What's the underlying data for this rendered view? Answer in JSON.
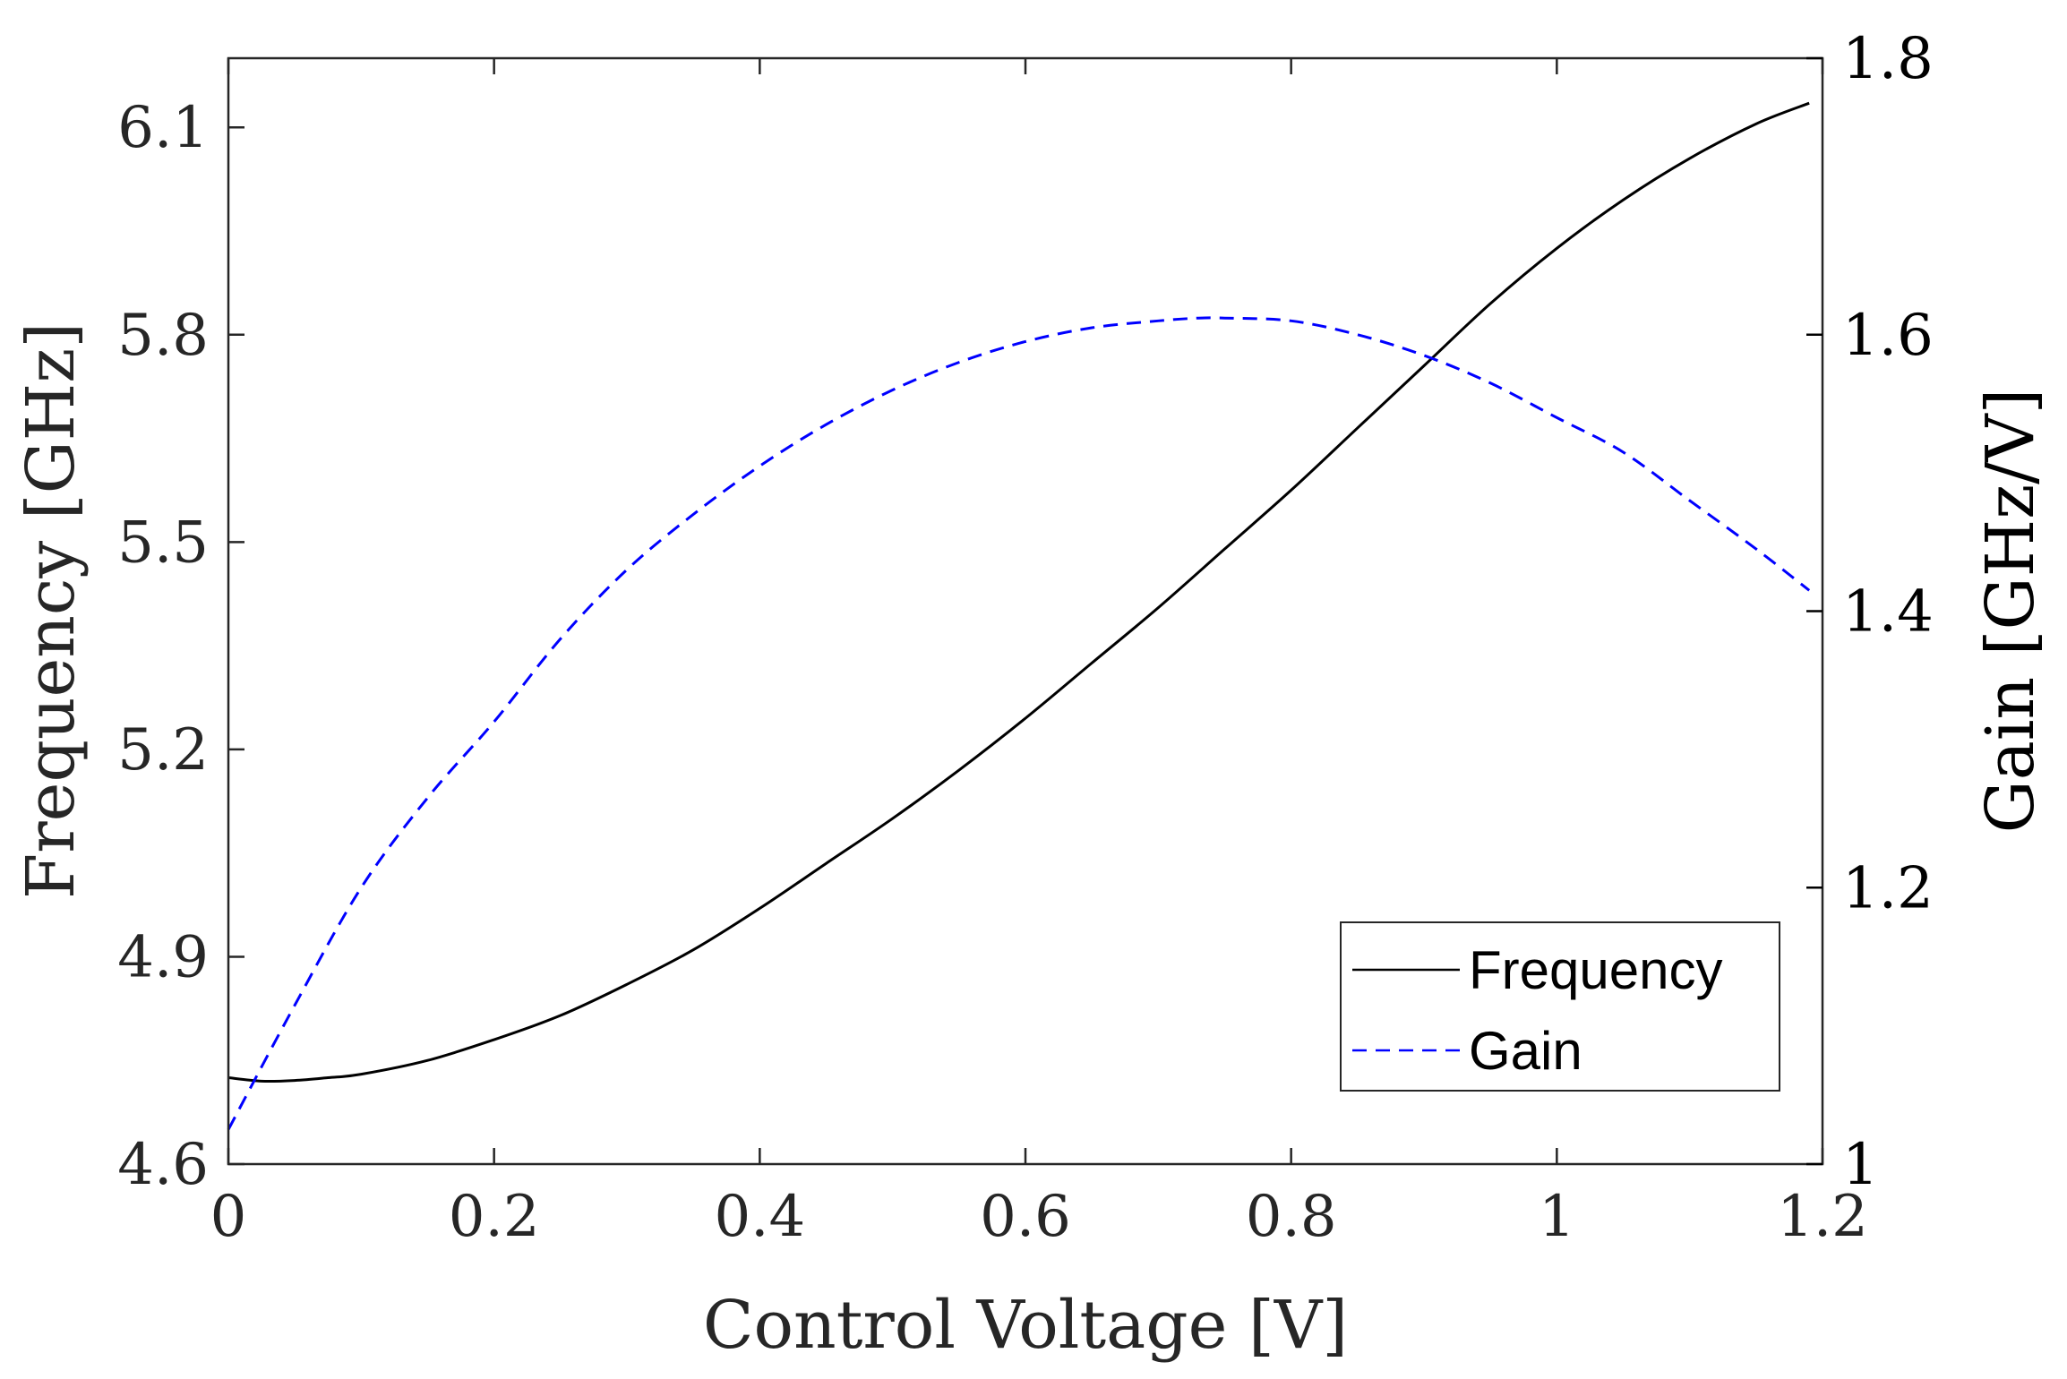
{
  "chart_data": {
    "type": "line",
    "xlabel": "Control Voltage [V]",
    "ylabel_left": "Frequency [GHz]",
    "ylabel_right": "Gain [GHz/V]",
    "xlim": [
      0,
      1.2
    ],
    "ylim_left": [
      4.6,
      6.2
    ],
    "ylim_right": [
      1.0,
      1.8
    ],
    "x_ticks": [
      {
        "value": 0,
        "label": "0"
      },
      {
        "value": 0.2,
        "label": "0.2"
      },
      {
        "value": 0.4,
        "label": "0.4"
      },
      {
        "value": 0.6,
        "label": "0.6"
      },
      {
        "value": 0.8,
        "label": "0.8"
      },
      {
        "value": 1.0,
        "label": "1"
      },
      {
        "value": 1.2,
        "label": "1.2"
      }
    ],
    "y_left_ticks": [
      {
        "value": 4.6,
        "label": "4.6"
      },
      {
        "value": 4.9,
        "label": "4.9"
      },
      {
        "value": 5.2,
        "label": "5.2"
      },
      {
        "value": 5.5,
        "label": "5.5"
      },
      {
        "value": 5.8,
        "label": "5.8"
      },
      {
        "value": 6.1,
        "label": "6.1"
      }
    ],
    "y_right_ticks": [
      {
        "value": 1.0,
        "label": "1"
      },
      {
        "value": 1.2,
        "label": "1.2"
      },
      {
        "value": 1.4,
        "label": "1.4"
      },
      {
        "value": 1.6,
        "label": "1.6"
      },
      {
        "value": 1.8,
        "label": "1.8"
      }
    ],
    "series": [
      {
        "name": "Frequency",
        "axis": "left",
        "color": "#000000",
        "style": "solid",
        "x": [
          0,
          0.025,
          0.05,
          0.075,
          0.1,
          0.15,
          0.2,
          0.25,
          0.3,
          0.35,
          0.4,
          0.45,
          0.5,
          0.55,
          0.6,
          0.65,
          0.7,
          0.75,
          0.8,
          0.85,
          0.9,
          0.95,
          1.0,
          1.05,
          1.1,
          1.15,
          1.19
        ],
        "y": [
          4.725,
          4.72,
          4.721,
          4.725,
          4.73,
          4.75,
          4.78,
          4.815,
          4.86,
          4.91,
          4.97,
          5.035,
          5.1,
          5.17,
          5.245,
          5.325,
          5.405,
          5.49,
          5.575,
          5.665,
          5.755,
          5.845,
          5.925,
          5.995,
          6.055,
          6.105,
          6.135
        ]
      },
      {
        "name": "Gain",
        "axis": "right",
        "color": "#0000ff",
        "style": "dashed",
        "x": [
          0,
          0.05,
          0.1,
          0.15,
          0.2,
          0.25,
          0.3,
          0.35,
          0.4,
          0.45,
          0.5,
          0.55,
          0.6,
          0.65,
          0.7,
          0.73,
          0.75,
          0.8,
          0.85,
          0.9,
          0.95,
          1.0,
          1.05,
          1.1,
          1.15,
          1.19
        ],
        "y": [
          1.025,
          1.115,
          1.2,
          1.265,
          1.32,
          1.38,
          1.43,
          1.47,
          1.505,
          1.535,
          1.56,
          1.58,
          1.595,
          1.605,
          1.61,
          1.612,
          1.612,
          1.61,
          1.6,
          1.585,
          1.565,
          1.54,
          1.515,
          1.48,
          1.445,
          1.415
        ]
      }
    ],
    "legend": {
      "position": "bottom-right",
      "entries": [
        {
          "label": "Frequency",
          "color": "#000000",
          "style": "solid"
        },
        {
          "label": "Gain",
          "color": "#0000ff",
          "style": "dashed"
        }
      ]
    }
  }
}
